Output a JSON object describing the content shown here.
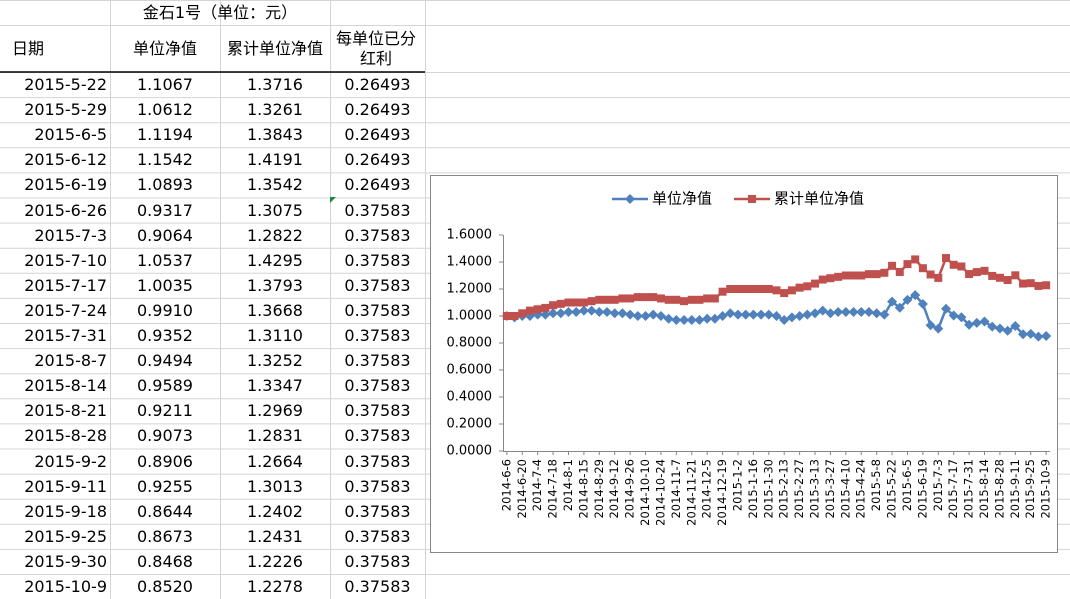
{
  "table": {
    "title": "金石1号（单位：元）",
    "headers": [
      "日期",
      "单位净值",
      "累计单位净值",
      "每单位已分红利"
    ],
    "rows": [
      [
        "2015-5-22",
        "1.1067",
        "1.3716",
        "0.26493"
      ],
      [
        "2015-5-29",
        "1.0612",
        "1.3261",
        "0.26493"
      ],
      [
        "2015-6-5",
        "1.1194",
        "1.3843",
        "0.26493"
      ],
      [
        "2015-6-12",
        "1.1542",
        "1.4191",
        "0.26493"
      ],
      [
        "2015-6-19",
        "1.0893",
        "1.3542",
        "0.26493"
      ],
      [
        "2015-6-26",
        "0.9317",
        "1.3075",
        "0.37583"
      ],
      [
        "2015-7-3",
        "0.9064",
        "1.2822",
        "0.37583"
      ],
      [
        "2015-7-10",
        "1.0537",
        "1.4295",
        "0.37583"
      ],
      [
        "2015-7-17",
        "1.0035",
        "1.3793",
        "0.37583"
      ],
      [
        "2015-7-24",
        "0.9910",
        "1.3668",
        "0.37583"
      ],
      [
        "2015-7-31",
        "0.9352",
        "1.3110",
        "0.37583"
      ],
      [
        "2015-8-7",
        "0.9494",
        "1.3252",
        "0.37583"
      ],
      [
        "2015-8-14",
        "0.9589",
        "1.3347",
        "0.37583"
      ],
      [
        "2015-8-21",
        "0.9211",
        "1.2969",
        "0.37583"
      ],
      [
        "2015-8-28",
        "0.9073",
        "1.2831",
        "0.37583"
      ],
      [
        "2015-9-2",
        "0.8906",
        "1.2664",
        "0.37583"
      ],
      [
        "2015-9-11",
        "0.9255",
        "1.3013",
        "0.37583"
      ],
      [
        "2015-9-18",
        "0.8644",
        "1.2402",
        "0.37583"
      ],
      [
        "2015-9-25",
        "0.8673",
        "1.2431",
        "0.37583"
      ],
      [
        "2015-9-30",
        "0.8468",
        "1.2226",
        "0.37583"
      ],
      [
        "2015-10-9",
        "0.8520",
        "1.2278",
        "0.37583"
      ]
    ]
  },
  "chart_data": {
    "type": "line",
    "categories": [
      "2014-6-6",
      null,
      "2014-6-20",
      null,
      "2014-7-4",
      null,
      "2014-7-18",
      null,
      "2014-8-1",
      null,
      "2014-8-15",
      null,
      "2014-8-29",
      null,
      "2014-9-12",
      null,
      "2014-9-26",
      null,
      "2014-10-10",
      null,
      "2014-10-24",
      null,
      "2014-11-7",
      null,
      "2014-11-21",
      null,
      "2014-12-5",
      null,
      "2014-12-19",
      null,
      "2015-1-2",
      null,
      "2015-1-16",
      null,
      "2015-1-30",
      null,
      "2015-2-13",
      null,
      "2015-2-27",
      null,
      "2015-3-13",
      null,
      "2015-3-27",
      null,
      "2015-4-10",
      null,
      "2015-4-24",
      null,
      "2015-5-8",
      null,
      "2015-5-22",
      null,
      "2015-6-5",
      null,
      "2015-6-19",
      null,
      "2015-7-3",
      null,
      "2015-7-17",
      null,
      "2015-7-31",
      null,
      "2015-8-14",
      null,
      "2015-8-28",
      null,
      "2015-9-11",
      null,
      "2015-9-25",
      null,
      "2015-10-9"
    ],
    "series": [
      {
        "name": "单位净值",
        "color": "#4f81bd",
        "marker": "diamond",
        "values": [
          1.0,
          0.99,
          1.0,
          1.0,
          1.01,
          1.01,
          1.02,
          1.02,
          1.03,
          1.03,
          1.04,
          1.04,
          1.03,
          1.03,
          1.02,
          1.02,
          1.01,
          1.0,
          1.0,
          1.01,
          1.0,
          0.98,
          0.97,
          0.97,
          0.97,
          0.97,
          0.98,
          0.98,
          1.0,
          1.02,
          1.01,
          1.01,
          1.01,
          1.01,
          1.01,
          1.0,
          0.97,
          0.99,
          1.0,
          1.01,
          1.02,
          1.04,
          1.02,
          1.03,
          1.03,
          1.03,
          1.03,
          1.03,
          1.02,
          1.01,
          1.1067,
          1.0612,
          1.1194,
          1.1542,
          1.0893,
          0.9317,
          0.9064,
          1.0537,
          1.0035,
          0.991,
          0.9352,
          0.9494,
          0.9589,
          0.9211,
          0.9073,
          0.8906,
          0.9255,
          0.8644,
          0.8673,
          0.8468,
          0.852
        ]
      },
      {
        "name": "累计单位净值",
        "color": "#c0504d",
        "marker": "square",
        "values": [
          1.0,
          1.0,
          1.02,
          1.04,
          1.05,
          1.06,
          1.08,
          1.09,
          1.1,
          1.1,
          1.1,
          1.11,
          1.12,
          1.12,
          1.12,
          1.13,
          1.13,
          1.14,
          1.14,
          1.14,
          1.13,
          1.12,
          1.12,
          1.11,
          1.12,
          1.12,
          1.13,
          1.13,
          1.18,
          1.2,
          1.2,
          1.2,
          1.2,
          1.2,
          1.2,
          1.19,
          1.17,
          1.19,
          1.21,
          1.22,
          1.24,
          1.27,
          1.28,
          1.29,
          1.3,
          1.3,
          1.3,
          1.31,
          1.31,
          1.32,
          1.3716,
          1.3261,
          1.3843,
          1.4191,
          1.3542,
          1.3075,
          1.2822,
          1.4295,
          1.3793,
          1.3668,
          1.311,
          1.3252,
          1.3347,
          1.2969,
          1.2831,
          1.2664,
          1.3013,
          1.2402,
          1.2431,
          1.2226,
          1.2278
        ]
      }
    ],
    "ylim": [
      0,
      1.6
    ],
    "yticks": [
      {
        "value": 0,
        "label": "0.0000"
      },
      {
        "value": 0.2,
        "label": "0.2000"
      },
      {
        "value": 0.4,
        "label": "0.4000"
      },
      {
        "value": 0.6,
        "label": "0.6000"
      },
      {
        "value": 0.8,
        "label": "0.8000"
      },
      {
        "value": 1.0,
        "label": "1.0000"
      },
      {
        "value": 1.2,
        "label": "1.2000"
      },
      {
        "value": 1.4,
        "label": "1.4000"
      },
      {
        "value": 1.6,
        "label": "1.6000"
      }
    ],
    "legend": "top",
    "grid": false
  }
}
